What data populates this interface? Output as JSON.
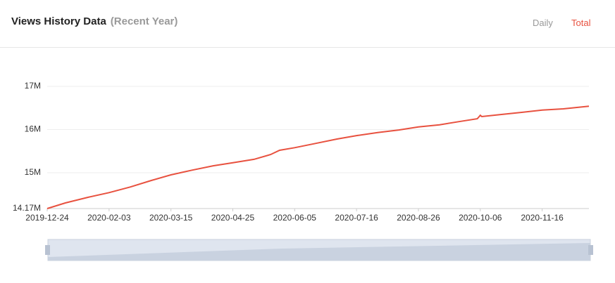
{
  "header": {
    "title": "Views History Data",
    "subtitle": "(Recent Year)",
    "tabs": [
      "Daily",
      "Total"
    ],
    "active_tab": 1
  },
  "chart_data": {
    "type": "line",
    "x": [
      "2019-12-24",
      "2020-01-05",
      "2020-01-20",
      "2020-02-03",
      "2020-02-17",
      "2020-03-02",
      "2020-03-15",
      "2020-03-29",
      "2020-04-12",
      "2020-04-25",
      "2020-05-09",
      "2020-05-20",
      "2020-05-26",
      "2020-06-05",
      "2020-06-19",
      "2020-07-03",
      "2020-07-16",
      "2020-07-30",
      "2020-08-13",
      "2020-08-26",
      "2020-09-09",
      "2020-09-23",
      "2020-10-04",
      "2020-10-06",
      "2020-10-07",
      "2020-10-20",
      "2020-11-03",
      "2020-11-16",
      "2020-11-30",
      "2020-12-17"
    ],
    "series": [
      {
        "name": "Total",
        "color": "#e8513f",
        "values": [
          14170000,
          14300000,
          14430000,
          14540000,
          14670000,
          14820000,
          14950000,
          15060000,
          15160000,
          15230000,
          15310000,
          15420000,
          15520000,
          15580000,
          15680000,
          15780000,
          15860000,
          15930000,
          15990000,
          16060000,
          16110000,
          16190000,
          16250000,
          16330000,
          16300000,
          16350000,
          16400000,
          16450000,
          16480000,
          16540000
        ]
      }
    ],
    "xlim": [
      "2019-12-24",
      "2020-12-17"
    ],
    "xticks": [
      "2019-12-24",
      "2020-02-03",
      "2020-03-15",
      "2020-04-25",
      "2020-06-05",
      "2020-07-16",
      "2020-08-26",
      "2020-10-06",
      "2020-11-16"
    ],
    "ylim": [
      14170000,
      17000000
    ],
    "yticks": [
      {
        "value": 14170000,
        "label": "14.17M"
      },
      {
        "value": 15000000,
        "label": "15M"
      },
      {
        "value": 16000000,
        "label": "16M"
      },
      {
        "value": 17000000,
        "label": "17M"
      }
    ],
    "grid": true
  }
}
